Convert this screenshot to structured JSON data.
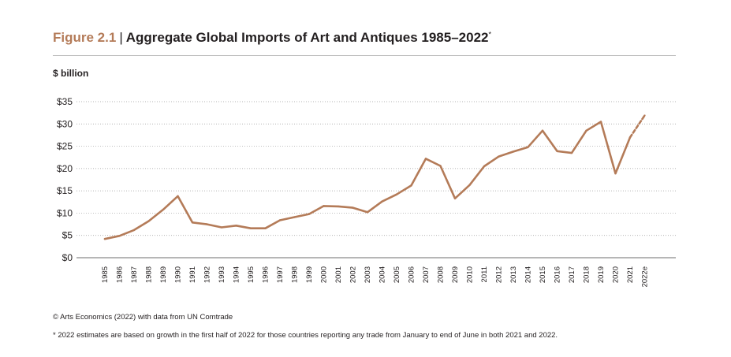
{
  "header": {
    "figure_label": "Figure 2.1",
    "separator": "|",
    "title": "Aggregate Global Imports of Art and Antiques 1985–2022",
    "title_marker": "*"
  },
  "chart_data": {
    "type": "line",
    "title": "Aggregate Global Imports of Art and Antiques 1985–2022",
    "ylabel": "$ billion",
    "xlabel": "",
    "ylim": [
      0,
      35
    ],
    "yticks": [
      0,
      5,
      10,
      15,
      20,
      25,
      30,
      35
    ],
    "ytick_labels": [
      "$0",
      "$5",
      "$10",
      "$15",
      "$20",
      "$25",
      "$30",
      "$35"
    ],
    "categories": [
      "1985",
      "1986",
      "1987",
      "1988",
      "1989",
      "1990",
      "1991",
      "1992",
      "1993",
      "1994",
      "1995",
      "1996",
      "1997",
      "1998",
      "1999",
      "2000",
      "2001",
      "2002",
      "2003",
      "2004",
      "2005",
      "2006",
      "2007",
      "2008",
      "2009",
      "2010",
      "2011",
      "2012",
      "2013",
      "2014",
      "2015",
      "2016",
      "2017",
      "2018",
      "2019",
      "2020",
      "2021",
      "2022e"
    ],
    "series": [
      {
        "name": "Aggregate global imports",
        "values": [
          4.2,
          4.9,
          6.2,
          8.2,
          10.8,
          13.8,
          7.9,
          7.5,
          6.8,
          7.2,
          6.6,
          6.6,
          8.4,
          9.1,
          9.8,
          11.6,
          11.5,
          11.2,
          10.2,
          12.6,
          14.2,
          16.2,
          22.2,
          20.6,
          13.3,
          16.3,
          20.5,
          22.7,
          23.8,
          24.8,
          28.5,
          23.9,
          23.5,
          28.5,
          30.5,
          18.9,
          27.0,
          31.9
        ],
        "color": "#b47b58",
        "estimate_from_index": 36
      }
    ],
    "grid": true,
    "grid_style": "dotted"
  },
  "axes": {
    "unit_label": "$ billion"
  },
  "footer": {
    "source": "© Arts Economics (2022) with data from UN Comtrade",
    "note": "*  2022 estimates are based on growth in the first half of 2022 for those countries reporting any trade from January to end of June in both 2021 and 2022."
  },
  "colors": {
    "accent": "#b47b58",
    "line": "#b47b58",
    "grid": "#9a9a9a",
    "text": "#231f20"
  }
}
